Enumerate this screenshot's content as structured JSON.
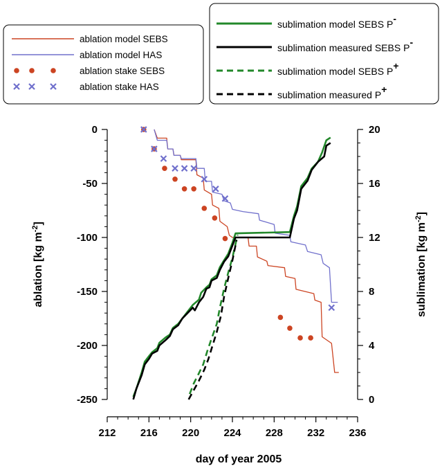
{
  "chart_data": {
    "type": "line",
    "title": "",
    "xlabel": "day of year 2005",
    "ylabel_left": {
      "base": "ablation [kg m",
      "sup": "-2",
      "end": "]"
    },
    "ylabel_right": {
      "base": "sublimation [kg m",
      "sup": "-2",
      "end": "]"
    },
    "xlim": [
      212,
      236
    ],
    "ylim_left": [
      -250,
      0
    ],
    "ylim_right": [
      0,
      20
    ],
    "xticks": [
      212,
      216,
      220,
      224,
      228,
      232,
      236
    ],
    "yticks_left": [
      0,
      -50,
      -100,
      -150,
      -200,
      -250
    ],
    "yticks_right": [
      20,
      16,
      12,
      8,
      4,
      0
    ],
    "grid": false,
    "legend_left_placement": "top-left",
    "legend_right_placement": "top-right",
    "colors": {
      "ablation_SEBS": "#cc4422",
      "ablation_HAS": "#7070cc",
      "sublimation_model": "#22882a",
      "sublimation_measured": "#000000"
    },
    "legend_left": [
      {
        "label": "ablation model SEBS",
        "style": "line",
        "color": "#cc4422"
      },
      {
        "label": "ablation model HAS",
        "style": "line",
        "color": "#7070cc"
      },
      {
        "label": "ablation stake SEBS",
        "style": "dots",
        "color": "#cc4422"
      },
      {
        "label": "ablation stake HAS",
        "style": "cross",
        "color": "#7070cc"
      }
    ],
    "legend_right": [
      {
        "label": "sublimation model SEBS P",
        "sup": "-",
        "style": "solid",
        "color": "#22882a"
      },
      {
        "label": "sublimation measured SEBS P",
        "sup": "-",
        "style": "solid",
        "color": "#000000"
      },
      {
        "label": "sublimation model SEBS P",
        "sup": "+",
        "style": "dashed",
        "color": "#22882a"
      },
      {
        "label": "sublimation measured P",
        "sup": "+",
        "style": "dashed",
        "color": "#000000"
      }
    ],
    "series": [
      {
        "name": "ablation model SEBS",
        "axis": "left",
        "style": "step",
        "color": "#cc4422",
        "width": 1.3,
        "points": [
          [
            216.5,
            0
          ],
          [
            216.8,
            -8
          ],
          [
            217.7,
            -8
          ],
          [
            217.8,
            -18
          ],
          [
            218.3,
            -18
          ],
          [
            218.4,
            -24
          ],
          [
            219.0,
            -24
          ],
          [
            219.1,
            -28
          ],
          [
            220.5,
            -28
          ],
          [
            220.6,
            -42
          ],
          [
            221.2,
            -45
          ],
          [
            221.3,
            -56
          ],
          [
            222.0,
            -60
          ],
          [
            222.1,
            -70
          ],
          [
            222.7,
            -73
          ],
          [
            222.8,
            -85
          ],
          [
            223.5,
            -90
          ],
          [
            223.7,
            -98
          ],
          [
            224.0,
            -100
          ],
          [
            225.5,
            -100
          ],
          [
            225.6,
            -108
          ],
          [
            226.3,
            -108
          ],
          [
            226.4,
            -118
          ],
          [
            227.3,
            -122
          ],
          [
            227.4,
            -126
          ],
          [
            229.0,
            -128
          ],
          [
            229.1,
            -136
          ],
          [
            230.0,
            -138
          ],
          [
            230.1,
            -148
          ],
          [
            231.8,
            -152
          ],
          [
            231.9,
            -158
          ],
          [
            232.5,
            -160
          ],
          [
            232.6,
            -192
          ],
          [
            233.5,
            -198
          ],
          [
            233.8,
            -225
          ],
          [
            234.2,
            -225
          ]
        ]
      },
      {
        "name": "ablation model HAS",
        "axis": "left",
        "style": "step",
        "color": "#7070cc",
        "width": 1.3,
        "points": [
          [
            216.5,
            0
          ],
          [
            216.8,
            -10
          ],
          [
            217.7,
            -10
          ],
          [
            217.8,
            -18
          ],
          [
            218.3,
            -18
          ],
          [
            218.4,
            -24
          ],
          [
            219.0,
            -24
          ],
          [
            219.1,
            -27
          ],
          [
            220.5,
            -27
          ],
          [
            220.6,
            -36
          ],
          [
            221.3,
            -36
          ],
          [
            221.4,
            -48
          ],
          [
            222.0,
            -48
          ],
          [
            222.1,
            -58
          ],
          [
            223.0,
            -60
          ],
          [
            223.2,
            -66
          ],
          [
            223.8,
            -68
          ],
          [
            224.0,
            -74
          ],
          [
            225.0,
            -76
          ],
          [
            226.5,
            -78
          ],
          [
            226.6,
            -84
          ],
          [
            228.0,
            -88
          ],
          [
            228.1,
            -96
          ],
          [
            229.5,
            -98
          ],
          [
            229.6,
            -104
          ],
          [
            231.0,
            -107
          ],
          [
            231.2,
            -113
          ],
          [
            232.5,
            -116
          ],
          [
            232.7,
            -124
          ],
          [
            233.3,
            -128
          ],
          [
            233.5,
            -160
          ],
          [
            234.1,
            -160
          ]
        ]
      },
      {
        "name": "ablation stake SEBS",
        "axis": "left",
        "style": "dots",
        "color": "#cc4422",
        "points": [
          [
            215.5,
            0
          ],
          [
            216.5,
            -18
          ],
          [
            217.5,
            -36
          ],
          [
            218.5,
            -46
          ],
          [
            219.4,
            -55
          ],
          [
            220.3,
            -55
          ],
          [
            221.3,
            -73
          ],
          [
            222.3,
            -82
          ],
          [
            223.3,
            -101
          ],
          [
            228.6,
            -174
          ],
          [
            229.5,
            -184
          ],
          [
            230.5,
            -193
          ],
          [
            231.5,
            -193
          ]
        ]
      },
      {
        "name": "ablation stake HAS",
        "axis": "left",
        "style": "cross",
        "color": "#7070cc",
        "points": [
          [
            215.5,
            0
          ],
          [
            216.5,
            -18
          ],
          [
            217.4,
            -27
          ],
          [
            218.5,
            -36
          ],
          [
            219.4,
            -36
          ],
          [
            220.3,
            -36
          ],
          [
            221.3,
            -46
          ],
          [
            222.4,
            -55
          ],
          [
            223.3,
            -64
          ],
          [
            233.5,
            -165
          ]
        ]
      },
      {
        "name": "sublimation model SEBS P-",
        "axis": "right",
        "style": "solid",
        "color": "#22882a",
        "width": 2.6,
        "points": [
          [
            214.5,
            0.2
          ],
          [
            214.8,
            0.8
          ],
          [
            215.3,
            2.0
          ],
          [
            215.6,
            2.8
          ],
          [
            216.0,
            3.2
          ],
          [
            216.3,
            3.5
          ],
          [
            216.8,
            3.8
          ],
          [
            217.0,
            4.2
          ],
          [
            217.6,
            4.6
          ],
          [
            218.0,
            4.8
          ],
          [
            218.3,
            5.3
          ],
          [
            218.8,
            5.6
          ],
          [
            219.2,
            6.0
          ],
          [
            219.7,
            6.5
          ],
          [
            220.2,
            7.0
          ],
          [
            220.8,
            7.4
          ],
          [
            221.0,
            7.9
          ],
          [
            221.5,
            8.3
          ],
          [
            221.8,
            8.5
          ],
          [
            222.0,
            8.9
          ],
          [
            222.5,
            9.2
          ],
          [
            222.8,
            9.8
          ],
          [
            223.2,
            10.3
          ],
          [
            223.6,
            10.8
          ],
          [
            224.0,
            11.6
          ],
          [
            224.3,
            12.3
          ],
          [
            229.5,
            12.4
          ],
          [
            229.9,
            13.6
          ],
          [
            230.2,
            14.3
          ],
          [
            230.6,
            15.8
          ],
          [
            231.2,
            16.4
          ],
          [
            231.6,
            17.1
          ],
          [
            232.2,
            17.6
          ],
          [
            232.6,
            18.3
          ],
          [
            233.0,
            19.2
          ],
          [
            233.4,
            19.4
          ]
        ]
      },
      {
        "name": "sublimation measured SEBS P-",
        "axis": "right",
        "style": "solid",
        "color": "#000000",
        "width": 2.6,
        "points": [
          [
            214.5,
            0.0
          ],
          [
            214.8,
            0.8
          ],
          [
            215.3,
            1.8
          ],
          [
            215.6,
            2.6
          ],
          [
            216.0,
            3.0
          ],
          [
            216.3,
            3.4
          ],
          [
            216.8,
            3.6
          ],
          [
            217.0,
            4.0
          ],
          [
            217.6,
            4.4
          ],
          [
            218.0,
            4.7
          ],
          [
            218.3,
            5.2
          ],
          [
            218.8,
            5.5
          ],
          [
            219.2,
            6.0
          ],
          [
            219.7,
            6.4
          ],
          [
            220.2,
            6.8
          ],
          [
            220.4,
            6.6
          ],
          [
            220.8,
            7.2
          ],
          [
            221.2,
            7.6
          ],
          [
            221.5,
            8.2
          ],
          [
            221.8,
            8.3
          ],
          [
            222.0,
            8.8
          ],
          [
            222.5,
            9.0
          ],
          [
            222.8,
            9.6
          ],
          [
            223.2,
            10.2
          ],
          [
            223.6,
            10.6
          ],
          [
            224.0,
            11.4
          ],
          [
            224.3,
            12.0
          ],
          [
            229.5,
            12.0
          ],
          [
            229.9,
            13.4
          ],
          [
            230.2,
            14.0
          ],
          [
            230.6,
            15.6
          ],
          [
            231.2,
            16.2
          ],
          [
            231.6,
            17.0
          ],
          [
            232.2,
            17.6
          ],
          [
            232.8,
            18.0
          ],
          [
            233.0,
            18.8
          ],
          [
            233.4,
            19.0
          ]
        ]
      },
      {
        "name": "sublimation model SEBS P+",
        "axis": "right",
        "style": "dashed",
        "color": "#22882a",
        "width": 2.6,
        "points": [
          [
            219.9,
            0.4
          ],
          [
            220.3,
            1.2
          ],
          [
            220.7,
            1.8
          ],
          [
            221.2,
            2.6
          ],
          [
            221.6,
            3.6
          ],
          [
            222.0,
            4.5
          ],
          [
            222.5,
            5.6
          ],
          [
            222.8,
            6.8
          ],
          [
            223.2,
            8.2
          ],
          [
            223.6,
            9.4
          ],
          [
            224.0,
            10.5
          ],
          [
            224.5,
            12.2
          ]
        ]
      },
      {
        "name": "sublimation measured P+",
        "axis": "right",
        "style": "dashed",
        "color": "#000000",
        "width": 2.6,
        "points": [
          [
            219.8,
            0.0
          ],
          [
            220.3,
            0.7
          ],
          [
            220.8,
            1.4
          ],
          [
            221.3,
            2.2
          ],
          [
            221.7,
            3.0
          ],
          [
            222.1,
            4.0
          ],
          [
            222.5,
            5.0
          ],
          [
            222.9,
            6.2
          ],
          [
            223.2,
            7.6
          ],
          [
            223.6,
            9.0
          ],
          [
            224.0,
            10.3
          ],
          [
            224.4,
            11.8
          ]
        ]
      }
    ]
  }
}
